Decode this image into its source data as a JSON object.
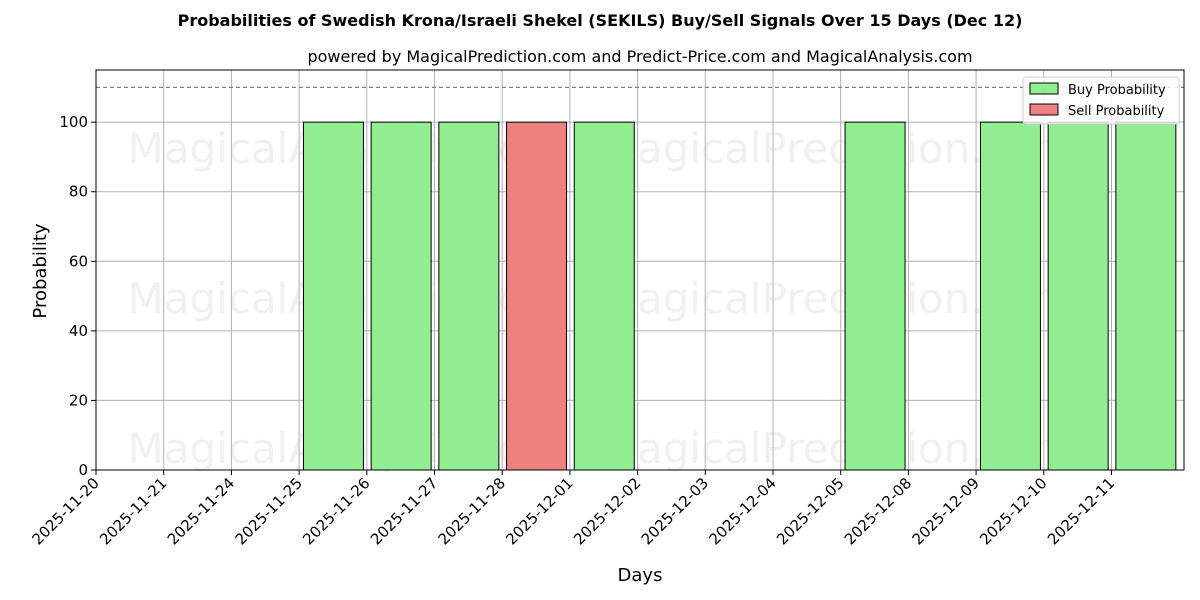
{
  "chart_data": {
    "type": "bar",
    "title": "Probabilities of Swedish Krona/Israeli Shekel (SEKILS) Buy/Sell Signals Over 15 Days (Dec 12)",
    "subtitle": "powered by MagicalPrediction.com and Predict-Price.com and MagicalAnalysis.com",
    "xlabel": "Days",
    "ylabel": "Probability",
    "ylim": [
      0,
      115
    ],
    "yticks": [
      0,
      20,
      40,
      60,
      80,
      100
    ],
    "reference_line": 110,
    "grid": true,
    "legend_position": "top-right",
    "categories": [
      "2025-11-20",
      "2025-11-21",
      "2025-11-24",
      "2025-11-25",
      "2025-11-26",
      "2025-11-27",
      "2025-11-28",
      "2025-12-01",
      "2025-12-02",
      "2025-12-03",
      "2025-12-04",
      "2025-12-05",
      "2025-12-08",
      "2025-12-09",
      "2025-12-10",
      "2025-12-11"
    ],
    "series": [
      {
        "name": "Buy Probability",
        "color": "#90ee90",
        "values": [
          0,
          0,
          0,
          100,
          100,
          100,
          0,
          100,
          0,
          0,
          0,
          100,
          0,
          100,
          100,
          100
        ]
      },
      {
        "name": "Sell Probability",
        "color": "#f08080",
        "values": [
          0,
          0,
          0,
          0,
          0,
          0,
          100,
          0,
          0,
          0,
          0,
          0,
          0,
          0,
          0,
          0
        ]
      }
    ],
    "watermarks": [
      "MagicalAnalysis.com",
      "MagicalPrediction.com"
    ]
  }
}
